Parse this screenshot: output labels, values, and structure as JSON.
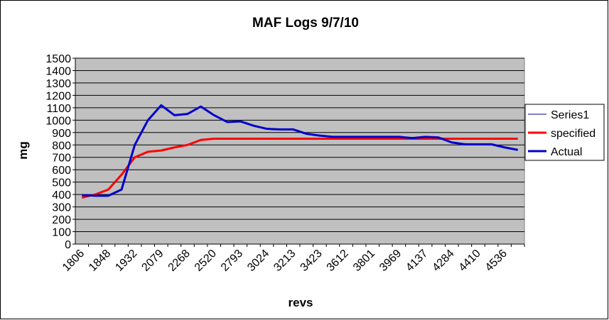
{
  "chart_data": {
    "type": "line",
    "title": "MAF Logs 9/7/10",
    "xlabel": "revs",
    "ylabel": "mg",
    "ylim": [
      0,
      1500
    ],
    "ytick_step": 100,
    "grid": "horizontal",
    "plot_background": "#c0c0c0",
    "legend_position": "right",
    "x_tick_labels": [
      "1806",
      "1848",
      "1932",
      "2079",
      "2268",
      "2520",
      "2793",
      "3024",
      "3213",
      "3423",
      "3612",
      "3801",
      "3969",
      "4137",
      "4284",
      "4410",
      "4536"
    ],
    "points_per_tick": 2,
    "series": [
      {
        "name": "Series1",
        "color": "#000080",
        "values": []
      },
      {
        "name": "specified",
        "color": "#ff0000",
        "values": [
          375,
          400,
          440,
          560,
          700,
          745,
          755,
          780,
          800,
          840,
          850,
          850,
          850,
          850,
          850,
          850,
          850,
          850,
          850,
          850,
          850,
          850,
          850,
          850,
          850,
          850,
          850,
          850,
          850,
          850,
          850,
          850,
          850,
          850
        ]
      },
      {
        "name": "Actual",
        "color": "#0000cc",
        "values": [
          395,
          390,
          390,
          440,
          800,
          1000,
          1120,
          1040,
          1050,
          1110,
          1040,
          985,
          990,
          955,
          930,
          925,
          925,
          890,
          875,
          865,
          865,
          865,
          865,
          865,
          865,
          855,
          865,
          860,
          820,
          805,
          805,
          805,
          780,
          760
        ]
      }
    ]
  }
}
